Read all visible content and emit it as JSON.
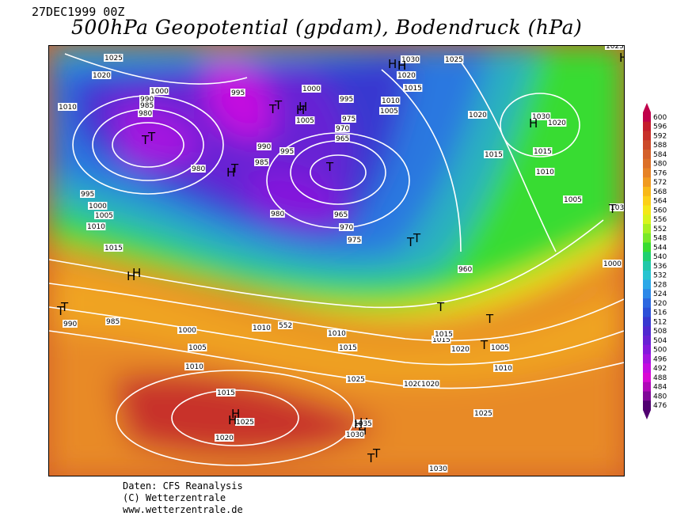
{
  "header": {
    "date": "27DEC1999 00Z",
    "title": "500hPa Geopotential (gpdam), Bodendruck (hPa)"
  },
  "footer": {
    "line1": "Daten: CFS Reanalysis",
    "line2": "(C) Wetterzentrale",
    "line3": "www.wetterzentrale.de"
  },
  "colorbar": {
    "labels": [
      "600",
      "596",
      "592",
      "588",
      "584",
      "580",
      "576",
      "572",
      "568",
      "564",
      "560",
      "556",
      "552",
      "548",
      "544",
      "540",
      "536",
      "532",
      "528",
      "524",
      "520",
      "516",
      "512",
      "508",
      "504",
      "500",
      "496",
      "492",
      "488",
      "484",
      "480",
      "476"
    ],
    "colors": [
      "#c0004a",
      "#c41c2c",
      "#c8302a",
      "#cc4a2a",
      "#d4602a",
      "#dc7028",
      "#e68226",
      "#f09a20",
      "#f8b818",
      "#fcd018",
      "#f4e818",
      "#d8f41c",
      "#a8f020",
      "#78e828",
      "#38dc30",
      "#20d070",
      "#20c8a8",
      "#28c4d0",
      "#2ca8e8",
      "#2c88e8",
      "#2c68e0",
      "#2c50d8",
      "#3838d0",
      "#5028d0",
      "#6820d4",
      "#8418dc",
      "#a414e0",
      "#c40ce0",
      "#d808d4",
      "#b008b8",
      "#800898",
      "#500070"
    ]
  },
  "pressure_labels": [
    "1025",
    "1020",
    "1010",
    "1000",
    "995",
    "990",
    "985",
    "980",
    "995",
    "1000",
    "1005",
    "1010",
    "1015",
    "H",
    "T",
    "T",
    "T",
    "H",
    "H",
    "1020",
    "1015",
    "1010",
    "1005",
    "980",
    "975",
    "970",
    "965",
    "T",
    "960",
    "985",
    "980",
    "975",
    "970",
    "965",
    "990",
    "995",
    "T",
    "1005",
    "1000",
    "995",
    "990",
    "985",
    "1000",
    "1005",
    "1010",
    "1015",
    "1020",
    "1025",
    "1030",
    "H",
    "H",
    "T",
    "H",
    "1030",
    "1025",
    "1020",
    "1015",
    "1010",
    "1005",
    "1010",
    "1015",
    "1020",
    "1025",
    "1030",
    "1015",
    "1010",
    "1005",
    "1000",
    "1020",
    "1025",
    "1030",
    "H",
    "T",
    "552",
    "1010",
    "1015",
    "1020",
    "1025",
    "1030",
    "1035",
    "T",
    "1015",
    "1020",
    "1020"
  ],
  "markers": [
    {
      "id": "h-north-iceland",
      "label": "H"
    },
    {
      "id": "t-greenland",
      "label": "T"
    },
    {
      "id": "h-arctic",
      "label": "H"
    },
    {
      "id": "h-north",
      "label": "H"
    },
    {
      "id": "t-scandinavia",
      "label": "T"
    },
    {
      "id": "h-russia",
      "label": "H"
    },
    {
      "id": "h-atlantic-mid",
      "label": "H"
    },
    {
      "id": "t-west",
      "label": "T"
    },
    {
      "id": "h-azores",
      "label": "H"
    },
    {
      "id": "h-iberia",
      "label": "H"
    },
    {
      "id": "t-africa",
      "label": "T"
    },
    {
      "id": "t-east",
      "label": "T"
    },
    {
      "id": "t-iceland",
      "label": "T"
    },
    {
      "id": "h-greenland-small",
      "label": "H"
    },
    {
      "id": "t-north-sea",
      "label": "T"
    },
    {
      "id": "t-baltic",
      "label": "T"
    }
  ]
}
